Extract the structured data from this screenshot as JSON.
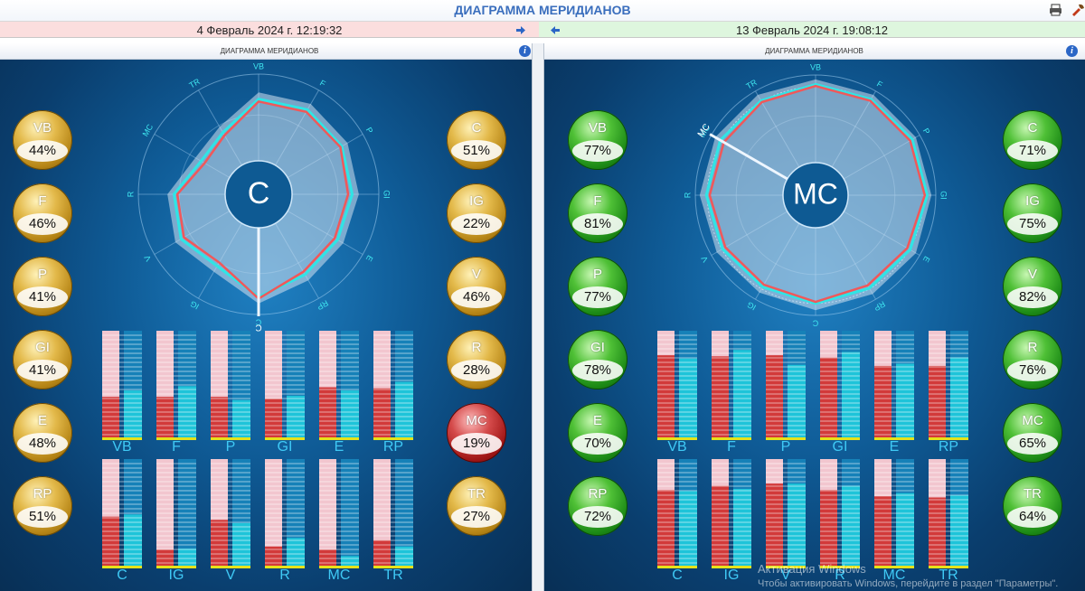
{
  "app": {
    "title": "ДИАГРАММА МЕРИДИАНОВ",
    "print_icon": "printer-icon",
    "tool_icon": "settings-icon"
  },
  "left": {
    "date": "4 Февраль 2024 г. 12:19:32",
    "subtitle": "ДИАГРАММА МЕРИДИАНОВ",
    "info": "i",
    "theme": "#ffd24a",
    "center_label": "C",
    "pointer_label": "C",
    "left_balls": [
      {
        "label": "VB",
        "value": "44%",
        "color": "gold"
      },
      {
        "label": "F",
        "value": "46%",
        "color": "gold"
      },
      {
        "label": "P",
        "value": "41%",
        "color": "gold"
      },
      {
        "label": "GI",
        "value": "41%",
        "color": "gold"
      },
      {
        "label": "E",
        "value": "48%",
        "color": "gold"
      },
      {
        "label": "RP",
        "value": "51%",
        "color": "gold"
      }
    ],
    "right_balls": [
      {
        "label": "C",
        "value": "51%",
        "color": "gold"
      },
      {
        "label": "IG",
        "value": "22%",
        "color": "gold"
      },
      {
        "label": "V",
        "value": "46%",
        "color": "gold"
      },
      {
        "label": "R",
        "value": "28%",
        "color": "gold"
      },
      {
        "label": "MC",
        "value": "19%",
        "color": "red"
      },
      {
        "label": "TR",
        "value": "27%",
        "color": "gold"
      }
    ]
  },
  "right": {
    "date": "13 Февраль 2024 г. 19:08:12",
    "subtitle": "ДИАГРАММА МЕРИДИАНОВ",
    "info": "i",
    "theme": "#ffd24a",
    "center_label": "MC",
    "pointer_label": "MC",
    "left_balls": [
      {
        "label": "VB",
        "value": "77%",
        "color": "green"
      },
      {
        "label": "F",
        "value": "81%",
        "color": "green"
      },
      {
        "label": "P",
        "value": "77%",
        "color": "green"
      },
      {
        "label": "GI",
        "value": "78%",
        "color": "green"
      },
      {
        "label": "E",
        "value": "70%",
        "color": "green"
      },
      {
        "label": "RP",
        "value": "72%",
        "color": "green"
      }
    ],
    "right_balls": [
      {
        "label": "C",
        "value": "71%",
        "color": "green"
      },
      {
        "label": "IG",
        "value": "75%",
        "color": "green"
      },
      {
        "label": "V",
        "value": "82%",
        "color": "green"
      },
      {
        "label": "R",
        "value": "76%",
        "color": "green"
      },
      {
        "label": "MC",
        "value": "65%",
        "color": "green"
      },
      {
        "label": "TR",
        "value": "64%",
        "color": "green"
      }
    ]
  },
  "watermark": {
    "line1": "Активация Windows",
    "line2": "Чтобы активировать Windows, перейдите в раздел \"Параметры\"."
  },
  "chart_data": [
    {
      "type": "radar",
      "axes": [
        "VB",
        "F",
        "P",
        "GI",
        "E",
        "RP",
        "C",
        "IG",
        "V",
        "R",
        "MC",
        "TR"
      ],
      "series": [
        {
          "values": [
            75,
            78,
            76,
            73,
            70,
            72,
            84,
            60,
            68,
            62,
            40,
            46
          ]
        },
        {
          "values": [
            72,
            75,
            74,
            68,
            66,
            68,
            86,
            55,
            64,
            58,
            35,
            42
          ]
        }
      ],
      "range": [
        0,
        100
      ],
      "color_series1": "#2fe5e5",
      "color_series2": "#f0585a"
    },
    {
      "type": "radar",
      "axes": [
        "VB",
        "F",
        "P",
        "GI",
        "E",
        "RP",
        "C",
        "IG",
        "V",
        "R",
        "MC",
        "TR"
      ],
      "series": [
        {
          "values": [
            94,
            94,
            95,
            95,
            92,
            90,
            91,
            88,
            90,
            92,
            93,
            92
          ]
        },
        {
          "values": [
            92,
            92,
            92,
            92,
            88,
            86,
            89,
            85,
            86,
            88,
            88,
            90
          ]
        }
      ],
      "range": [
        0,
        100
      ],
      "color_series1": "#2fe5e5",
      "color_series2": "#f0585a"
    },
    {
      "type": "bar",
      "categories": [
        "VB",
        "F",
        "P",
        "GI",
        "E",
        "RP"
      ],
      "series": [
        {
          "values": [
            38,
            38,
            38,
            36,
            47,
            46
          ]
        },
        {
          "values": [
            44,
            48,
            35,
            39,
            44,
            52
          ]
        }
      ],
      "range": [
        0,
        100
      ]
    },
    {
      "type": "bar",
      "categories": [
        "C",
        "IG",
        "V",
        "R",
        "MC",
        "TR"
      ],
      "series": [
        {
          "values": [
            46,
            15,
            43,
            18,
            15,
            24
          ]
        },
        {
          "values": [
            48,
            16,
            40,
            26,
            9,
            18
          ]
        }
      ],
      "range": [
        0,
        100
      ]
    },
    {
      "type": "bar",
      "categories": [
        "VB",
        "F",
        "P",
        "GI",
        "E",
        "RP"
      ],
      "series": [
        {
          "values": [
            77,
            76,
            77,
            75,
            67,
            67
          ]
        },
        {
          "values": [
            74,
            82,
            68,
            80,
            69,
            75
          ]
        }
      ],
      "range": [
        0,
        100
      ]
    },
    {
      "type": "bar",
      "categories": [
        "C",
        "IG",
        "V",
        "R",
        "MC",
        "TR"
      ],
      "series": [
        {
          "values": [
            71,
            75,
            77,
            71,
            65,
            64
          ]
        },
        {
          "values": [
            70,
            72,
            77,
            75,
            68,
            66
          ]
        }
      ],
      "range": [
        0,
        100
      ]
    }
  ]
}
